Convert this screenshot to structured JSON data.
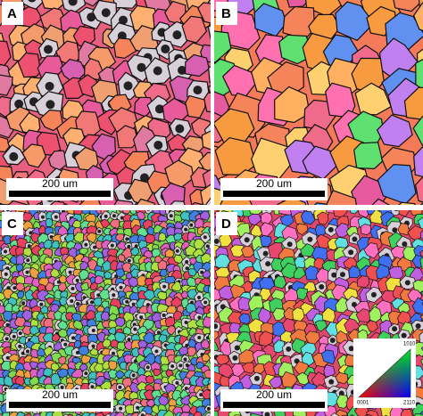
{
  "panels": [
    {
      "label": "A",
      "scale_bar": "200 um"
    },
    {
      "label": "B",
      "scale_bar": "200 um"
    },
    {
      "label": "C",
      "scale_bar": "200 um"
    },
    {
      "label": "D",
      "scale_bar": "200 um"
    }
  ],
  "legend": {
    "corner_0001": "0001",
    "corner_2110": "2110",
    "corner_1010": "1010"
  }
}
